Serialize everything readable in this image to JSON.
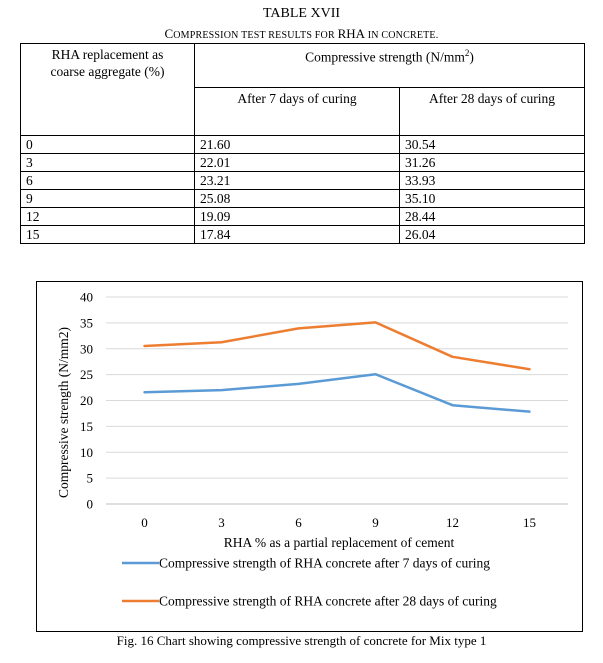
{
  "table": {
    "title": "TABLE XVII",
    "subtitle_parts": [
      "C",
      "OMPRESSION TEST RESULTS FOR ",
      "RHA",
      " IN CONCRETE."
    ],
    "header_left": [
      "RHA replacement as",
      "coarse aggregate (%)"
    ],
    "header_top": "Compressive strength (N/mm",
    "header_top_sup": "2",
    "header_top_close": ")",
    "col_7": "After 7 days of curing",
    "col_28": "After 28 days of curing",
    "rows": [
      [
        "0",
        "21.60",
        "30.54"
      ],
      [
        "3",
        "22.01",
        "31.26"
      ],
      [
        "6",
        "23.21",
        "33.93"
      ],
      [
        "9",
        "25.08",
        "35.10"
      ],
      [
        "12",
        "19.09",
        "28.44"
      ],
      [
        "15",
        "17.84",
        "26.04"
      ]
    ]
  },
  "chart_data": {
    "type": "line",
    "categories": [
      "0",
      "3",
      "6",
      "9",
      "12",
      "15"
    ],
    "series": [
      {
        "name": "Compressive strength of RHA concrete after 7 days of curing",
        "color": "#5b9bd5",
        "values": [
          21.6,
          22.01,
          23.21,
          25.08,
          19.09,
          17.84
        ]
      },
      {
        "name": "Compressive strength of RHA concrete after 28 days of curing",
        "color": "#ed7d31",
        "values": [
          30.54,
          31.26,
          33.93,
          35.1,
          28.44,
          26.04
        ]
      }
    ],
    "ylabel": "Compressive strength (N/mm2)",
    "xlabel": "RHA  % as a partial replacement of cement",
    "ylim": [
      0,
      40
    ],
    "yticks": [
      0,
      5,
      10,
      15,
      20,
      25,
      30,
      35,
      40
    ],
    "grid": true,
    "legend_position": "bottom"
  },
  "caption": "Fig. 16 Chart showing compressive strength of concrete for Mix type 1"
}
